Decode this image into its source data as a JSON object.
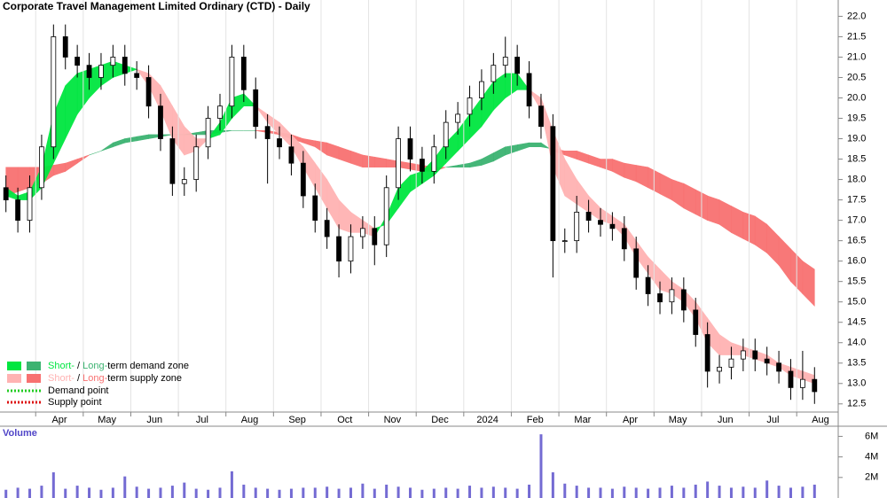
{
  "chart_data": {
    "type": "candlestick",
    "title": "Corporate Travel Management Limited Ordinary (CTD) - Daily",
    "categories": [
      null,
      null,
      null,
      "Apr",
      null,
      null,
      null,
      "May",
      null,
      null,
      null,
      "Jun",
      null,
      null,
      null,
      "Jul",
      null,
      null,
      null,
      "Aug",
      null,
      null,
      null,
      "Sep",
      null,
      null,
      null,
      "Oct",
      null,
      null,
      null,
      "Nov",
      null,
      null,
      null,
      "Dec",
      null,
      null,
      null,
      "2024",
      null,
      null,
      null,
      "Feb",
      null,
      null,
      null,
      "Mar",
      null,
      null,
      null,
      "Apr",
      null,
      null,
      null,
      "May",
      null,
      null,
      null,
      "Jun",
      null,
      null,
      null,
      "Jul",
      null,
      null,
      null,
      "Aug",
      null
    ],
    "open": [
      17.8,
      17.5,
      17.0,
      17.8,
      18.8,
      21.5,
      21.0,
      20.8,
      20.5,
      20.8,
      21.0,
      20.6,
      20.5,
      19.8,
      19.0,
      17.9,
      18.0,
      18.8,
      19.5,
      19.8,
      21.0,
      20.2,
      19.3,
      19.0,
      18.8,
      18.4,
      17.6,
      17.0,
      16.6,
      16.0,
      16.6,
      16.8,
      16.4,
      17.8,
      19.0,
      18.5,
      18.2,
      18.8,
      19.4,
      19.6,
      20.0,
      20.4,
      20.8,
      21.0,
      20.6,
      19.8,
      19.3,
      16.5,
      16.5,
      17.2,
      17.0,
      16.9,
      16.8,
      16.3,
      15.6,
      15.2,
      15.0,
      15.3,
      14.8,
      14.2,
      13.3,
      13.4,
      13.6,
      13.8,
      13.6,
      13.5,
      13.3,
      12.9,
      13.1
    ],
    "high": [
      18.1,
      17.8,
      18.1,
      19.1,
      21.8,
      21.8,
      21.3,
      21.1,
      21.1,
      21.3,
      21.3,
      20.9,
      20.8,
      20.1,
      19.3,
      18.3,
      19.1,
      19.8,
      20.1,
      21.3,
      21.3,
      20.5,
      19.6,
      19.3,
      19.1,
      18.7,
      17.9,
      17.3,
      16.9,
      16.9,
      17.1,
      17.1,
      18.1,
      19.3,
      19.3,
      18.8,
      19.1,
      19.7,
      19.9,
      20.3,
      20.7,
      21.1,
      21.5,
      21.3,
      20.9,
      20.1,
      19.6,
      16.8,
      17.6,
      17.5,
      17.3,
      17.2,
      17.1,
      16.6,
      15.9,
      15.5,
      15.6,
      15.6,
      15.1,
      14.5,
      13.7,
      13.9,
      14.1,
      14.1,
      13.9,
      13.8,
      13.6,
      13.8,
      13.4
    ],
    "low": [
      17.2,
      16.7,
      16.7,
      17.5,
      18.5,
      20.7,
      20.5,
      20.2,
      20.2,
      20.5,
      20.3,
      20.2,
      19.5,
      18.7,
      17.6,
      17.6,
      17.7,
      18.5,
      19.2,
      19.5,
      19.9,
      19.0,
      17.9,
      18.5,
      18.1,
      17.3,
      16.7,
      16.3,
      15.6,
      15.7,
      16.3,
      15.9,
      16.1,
      17.5,
      18.2,
      17.9,
      17.9,
      18.5,
      19.1,
      19.3,
      19.7,
      20.1,
      20.5,
      20.3,
      19.5,
      19.0,
      15.6,
      16.2,
      16.2,
      16.7,
      16.6,
      16.5,
      16.0,
      15.3,
      14.9,
      14.7,
      14.7,
      14.5,
      13.9,
      12.9,
      13.0,
      13.1,
      13.3,
      13.3,
      13.2,
      13.0,
      12.6,
      12.6,
      12.5
    ],
    "close": [
      17.5,
      17.0,
      17.8,
      18.8,
      21.5,
      21.0,
      20.8,
      20.5,
      20.8,
      21.0,
      20.6,
      20.5,
      19.8,
      19.0,
      17.9,
      18.0,
      18.8,
      19.5,
      19.8,
      21.0,
      20.2,
      19.3,
      19.0,
      18.8,
      18.4,
      17.6,
      17.0,
      16.6,
      16.0,
      16.6,
      16.8,
      16.4,
      17.8,
      19.0,
      18.5,
      18.2,
      18.8,
      19.4,
      19.6,
      20.0,
      20.4,
      20.8,
      21.0,
      20.6,
      19.8,
      19.3,
      16.5,
      16.5,
      17.2,
      17.0,
      16.9,
      16.8,
      16.3,
      15.6,
      15.2,
      15.0,
      15.3,
      14.8,
      14.2,
      13.3,
      13.4,
      13.6,
      13.8,
      13.6,
      13.5,
      13.3,
      12.9,
      13.1,
      12.8
    ],
    "color": "#000000",
    "ylim": [
      12.3,
      22.4
    ],
    "yticks": [
      12.5,
      {
        "value": 13,
        "label": "13.0"
      },
      13.5,
      {
        "value": 14,
        "label": "14.0"
      },
      14.5,
      {
        "value": 15,
        "label": "15.0"
      },
      15.5,
      {
        "value": 16,
        "label": "16.0"
      },
      16.5,
      {
        "value": 17,
        "label": "17.0"
      },
      17.5,
      {
        "value": 18,
        "label": "18.0"
      },
      18.5,
      {
        "value": 19,
        "label": "19.0"
      },
      19.5,
      {
        "value": 20,
        "label": "20.0"
      },
      20.5,
      {
        "value": 21,
        "label": "21.0"
      },
      21.5,
      {
        "value": 22,
        "label": "22.0"
      }
    ],
    "short_term_zone": {
      "fast": [
        17.8,
        17.6,
        17.7,
        18.3,
        19.6,
        20.3,
        20.6,
        20.7,
        20.8,
        20.9,
        20.8,
        20.7,
        20.3,
        19.7,
        19.0,
        18.6,
        18.7,
        19.0,
        19.4,
        20.0,
        20.1,
        19.8,
        19.4,
        19.1,
        18.8,
        18.3,
        17.8,
        17.3,
        16.8,
        16.7,
        16.7,
        16.6,
        17.1,
        17.8,
        18.1,
        18.2,
        18.5,
        18.9,
        19.2,
        19.6,
        20.0,
        20.4,
        20.6,
        20.6,
        20.2,
        19.7,
        18.3,
        17.6,
        17.4,
        17.2,
        17.0,
        16.9,
        16.6,
        16.1,
        15.7,
        15.3,
        15.2,
        15.0,
        14.6,
        14.0,
        13.7,
        13.7,
        13.7,
        13.6,
        13.5,
        13.4,
        13.2,
        13.1,
        13.0
      ],
      "slow": [
        17.6,
        17.5,
        17.5,
        17.8,
        18.4,
        19.0,
        19.6,
        20.0,
        20.3,
        20.5,
        20.6,
        20.7,
        20.6,
        20.3,
        19.8,
        19.3,
        19.0,
        19.0,
        19.1,
        19.5,
        19.8,
        19.8,
        19.6,
        19.4,
        19.1,
        18.8,
        18.4,
        18.0,
        17.5,
        17.2,
        17.0,
        16.8,
        16.9,
        17.3,
        17.7,
        17.9,
        18.1,
        18.4,
        18.7,
        19.0,
        19.3,
        19.7,
        20.0,
        20.2,
        20.2,
        20.0,
        19.2,
        18.5,
        18.0,
        17.6,
        17.3,
        17.1,
        16.9,
        16.5,
        16.1,
        15.8,
        15.5,
        15.3,
        15.0,
        14.6,
        14.2,
        14.0,
        13.9,
        13.8,
        13.7,
        13.5,
        13.4,
        13.3,
        13.2
      ],
      "demand_color": "#00e640",
      "supply_color": "#ffb3b3"
    },
    "long_term_zone": {
      "fast": [
        17.6,
        17.7,
        17.8,
        17.9,
        18.1,
        18.2,
        18.4,
        18.6,
        18.7,
        18.9,
        19.0,
        19.05,
        19.1,
        19.1,
        19.1,
        19.1,
        19.15,
        19.2,
        19.2,
        19.2,
        19.2,
        19.2,
        19.15,
        19.1,
        19.0,
        18.9,
        18.8,
        18.6,
        18.5,
        18.4,
        18.3,
        18.3,
        18.3,
        18.3,
        18.25,
        18.2,
        18.2,
        18.3,
        18.35,
        18.4,
        18.5,
        18.65,
        18.8,
        18.85,
        18.9,
        18.9,
        18.7,
        18.6,
        18.5,
        18.4,
        18.3,
        18.2,
        18.05,
        17.95,
        17.8,
        17.65,
        17.5,
        17.3,
        17.15,
        17.0,
        16.9,
        16.7,
        16.55,
        16.4,
        16.2,
        15.9,
        15.5,
        15.2,
        14.9
      ],
      "slow": [
        18.3,
        18.3,
        18.3,
        18.3,
        18.35,
        18.4,
        18.5,
        18.6,
        18.7,
        18.8,
        18.9,
        18.95,
        19.0,
        19.05,
        19.1,
        19.1,
        19.1,
        19.1,
        19.15,
        19.2,
        19.2,
        19.2,
        19.2,
        19.15,
        19.1,
        19.0,
        18.95,
        18.9,
        18.8,
        18.7,
        18.6,
        18.55,
        18.5,
        18.45,
        18.4,
        18.35,
        18.3,
        18.3,
        18.3,
        18.3,
        18.35,
        18.45,
        18.6,
        18.7,
        18.8,
        18.8,
        18.75,
        18.7,
        18.7,
        18.6,
        18.5,
        18.5,
        18.4,
        18.35,
        18.3,
        18.15,
        18.0,
        17.9,
        17.75,
        17.6,
        17.5,
        17.35,
        17.2,
        17.1,
        16.9,
        16.6,
        16.3,
        16.0,
        15.8
      ],
      "demand_color": "#3cb371",
      "supply_color": "#f87171"
    },
    "volume": {
      "label": "Volume",
      "color": "#5146c8",
      "values": [
        800000,
        1000000,
        900000,
        1200000,
        2500000,
        900000,
        1200000,
        1000000,
        800000,
        1000000,
        2100000,
        1100000,
        900000,
        1000000,
        1200000,
        1500000,
        900000,
        800000,
        1000000,
        2600000,
        1300000,
        1000000,
        900000,
        800000,
        900000,
        1000000,
        1000000,
        1100000,
        900000,
        1000000,
        1400000,
        900000,
        1300000,
        1100000,
        1000000,
        800000,
        900000,
        1000000,
        900000,
        1200000,
        1000000,
        1100000,
        1000000,
        900000,
        1300000,
        6200000,
        2500000,
        1400000,
        1200000,
        1000000,
        1000000,
        900000,
        1100000,
        1000000,
        900000,
        1000000,
        1200000,
        1000000,
        1300000,
        1600000,
        1200000,
        1000000,
        1100000,
        1000000,
        1700000,
        1200000,
        1000000,
        1100000,
        1300000
      ],
      "ylim": [
        0,
        6900000
      ],
      "yticks": [
        {
          "value": 2000000,
          "label": "2M"
        },
        {
          "value": 4000000,
          "label": "4M"
        },
        {
          "value": 6000000,
          "label": "6M"
        }
      ]
    },
    "legend": {
      "demand_zone": [
        "Short-",
        " / ",
        "Long-",
        "term demand zone"
      ],
      "supply_zone": [
        "Short-",
        " / ",
        "Long-",
        "term supply zone"
      ],
      "demand_point": "Demand point",
      "supply_point": "Supply point",
      "demand_point_color": "#22cc22",
      "supply_point_color": "#dd1111"
    }
  }
}
